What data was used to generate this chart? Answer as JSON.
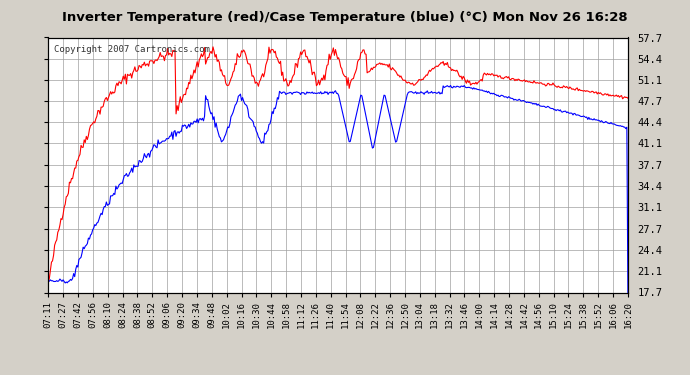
{
  "title": "Inverter Temperature (red)/Case Temperature (blue) (°C) Mon Nov 26 16:28",
  "copyright": "Copyright 2007 Cartronics.com",
  "background_color": "#d4d0c8",
  "plot_bg_color": "#ffffff",
  "grid_color": "#a0a0a0",
  "yticks": [
    17.7,
    21.1,
    24.4,
    27.7,
    31.1,
    34.4,
    37.7,
    41.1,
    44.4,
    47.7,
    51.1,
    54.4,
    57.7
  ],
  "ylim": [
    17.7,
    57.7
  ],
  "x_labels": [
    "07:11",
    "07:27",
    "07:42",
    "07:56",
    "08:10",
    "08:24",
    "08:38",
    "08:52",
    "09:06",
    "09:20",
    "09:34",
    "09:48",
    "10:02",
    "10:16",
    "10:30",
    "10:44",
    "10:58",
    "11:12",
    "11:26",
    "11:40",
    "11:54",
    "12:08",
    "12:22",
    "12:36",
    "12:50",
    "13:04",
    "13:18",
    "13:32",
    "13:46",
    "14:00",
    "14:14",
    "14:28",
    "14:42",
    "14:56",
    "15:10",
    "15:24",
    "15:38",
    "15:52",
    "16:06",
    "16:20"
  ]
}
